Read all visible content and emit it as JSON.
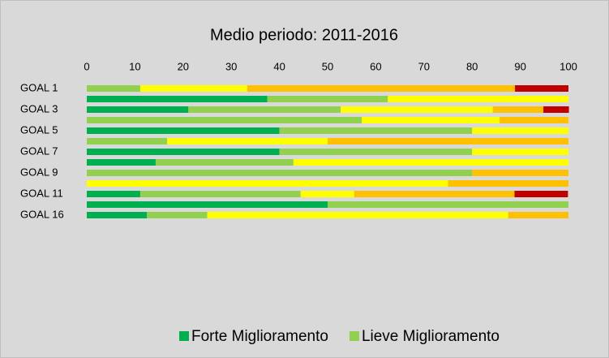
{
  "chart_data": {
    "type": "stacked_barh",
    "title": "Medio periodo: 2011-2016",
    "categories": [
      "GOAL  1",
      null,
      "GOAL  3",
      null,
      "GOAL  5",
      null,
      "GOAL  7",
      null,
      "GOAL  9",
      null,
      "GOAL 11",
      null,
      "GOAL 16"
    ],
    "series": [
      {
        "name": "Forte Miglioramento",
        "color": "#00b050",
        "values": [
          0,
          37.5,
          21.1,
          0,
          40,
          0,
          40,
          14.3,
          0,
          0,
          11.1,
          50,
          12.5
        ]
      },
      {
        "name": "Lieve Miglioramento",
        "color": "#92d050",
        "values": [
          11.1,
          25,
          31.6,
          57.1,
          40,
          16.7,
          40,
          28.6,
          80,
          0,
          33.3,
          50,
          12.5
        ]
      },
      {
        "color": "#ffff00",
        "values": [
          22.2,
          37.5,
          31.6,
          28.6,
          20,
          33.3,
          20,
          57.1,
          0,
          75,
          11.1,
          0,
          62.5
        ]
      },
      {
        "color": "#ffc000",
        "values": [
          55.6,
          0,
          10.5,
          14.3,
          0,
          50,
          0,
          0,
          20,
          25,
          33.3,
          0,
          12.5
        ]
      },
      {
        "color": "#c00000",
        "values": [
          11.1,
          0,
          5.3,
          0,
          0,
          0,
          0,
          0,
          0,
          0,
          11.1,
          0,
          0
        ]
      }
    ],
    "xlim": [
      0,
      100
    ],
    "xticks": [
      0,
      10,
      20,
      30,
      40,
      50,
      60,
      70,
      80,
      90,
      100
    ]
  }
}
